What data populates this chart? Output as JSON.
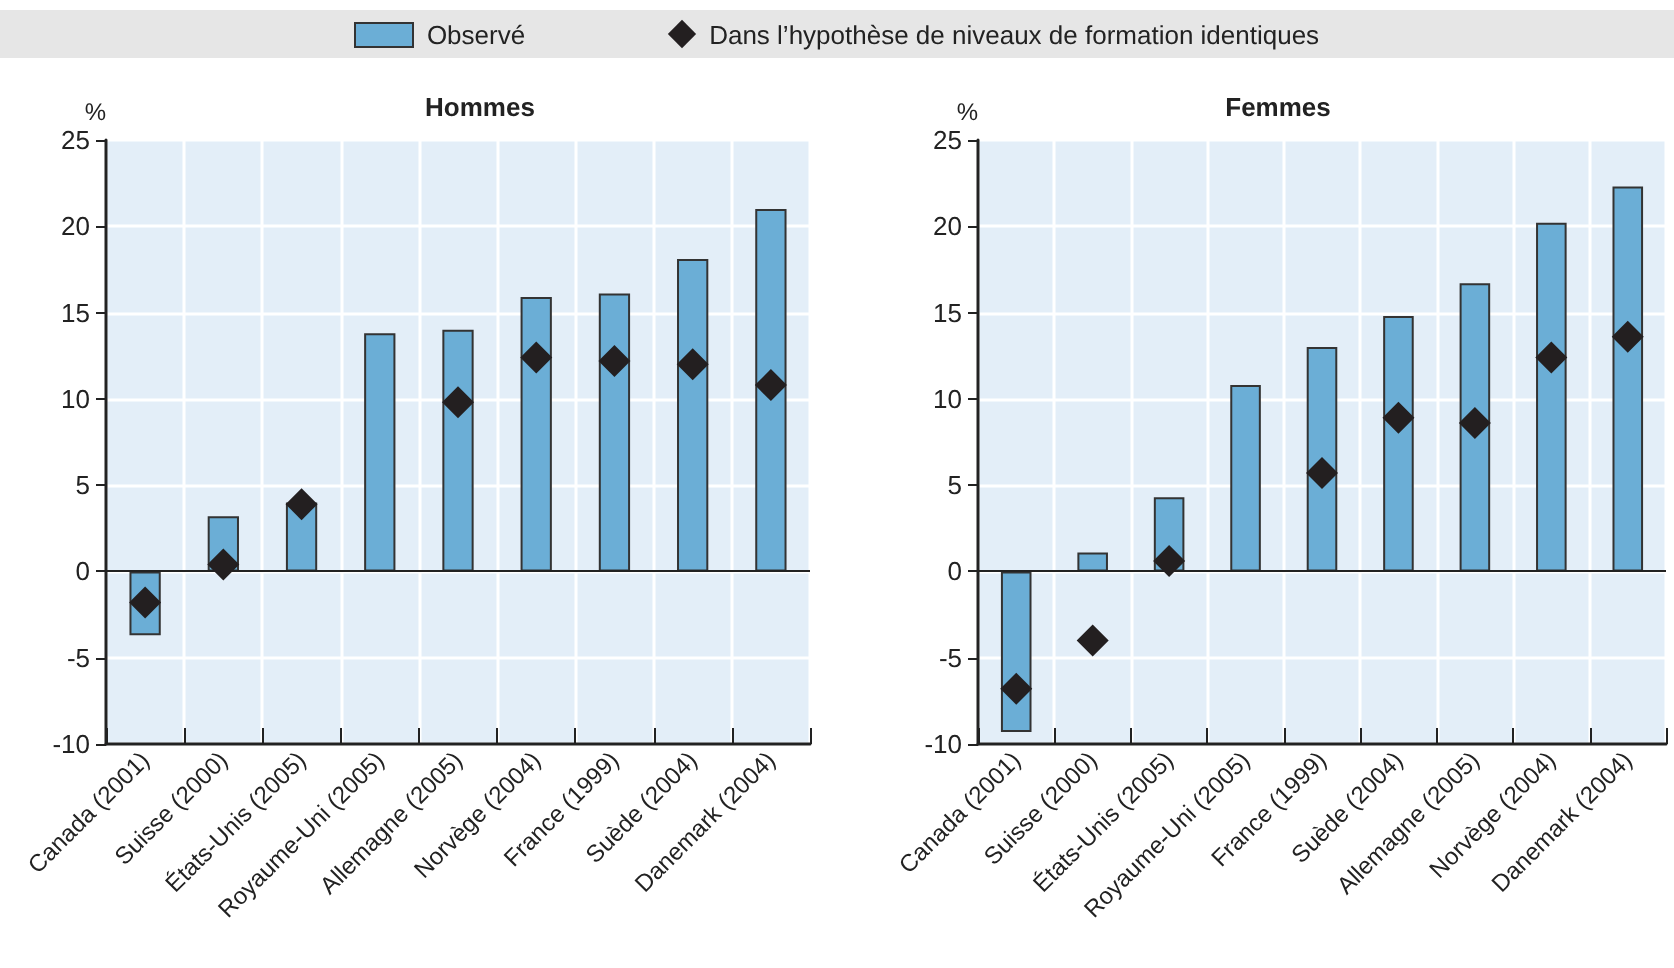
{
  "chart_data": [
    {
      "type": "bar",
      "title": "Hommes",
      "ylabel": "%",
      "categories": [
        "Canada (2001)",
        "Suisse (2000)",
        "États-Unis (2005)",
        "Royaume-Uni (2005)",
        "Allemagne (2005)",
        "Norvège (2004)",
        "France (1999)",
        "Suède (2004)",
        "Danemark (2004)"
      ],
      "series": [
        {
          "name": "Observé",
          "color": "#6baed6",
          "values": [
            -3.7,
            3.2,
            4.0,
            13.8,
            14.0,
            15.9,
            16.1,
            18.1,
            21.0
          ]
        },
        {
          "name": "Dans l’hypothèse de niveaux de formation identiques",
          "type": "scatter",
          "marker": "diamond",
          "color": "#231f20",
          "x": [
            "Canada (2001)",
            "Suisse (2000)",
            "États-Unis (2005)",
            "Royaume-Uni (2005)",
            "Allemagne (2005)",
            "Norvège (2004)",
            "France (1999)",
            "Suède (2004)",
            "Danemark (2004)"
          ],
          "values": [
            -1.8,
            0.4,
            3.9,
            null,
            9.8,
            12.4,
            12.2,
            12.0,
            10.8
          ]
        }
      ],
      "ylim": [
        -10,
        25
      ],
      "yticks": [
        -10,
        -5,
        0,
        5,
        10,
        15,
        20,
        25
      ],
      "grid": true,
      "legend": "top"
    },
    {
      "type": "bar",
      "title": "Femmes",
      "ylabel": "%",
      "categories": [
        "Canada (2001)",
        "Suisse (2000)",
        "États-Unis (2005)",
        "Royaume-Uni (2005)",
        "France (1999)",
        "Suède (2004)",
        "Allemagne (2005)",
        "Norvège (2004)",
        "Danemark (2004)"
      ],
      "series": [
        {
          "color": "#6baed6",
          "values": [
            -9.3,
            1.1,
            4.3,
            10.8,
            13.0,
            14.8,
            16.7,
            20.2,
            22.3
          ]
        },
        {
          "type": "scatter",
          "marker": "diamond",
          "color": "#231f20",
          "x": [
            "Canada (2001)",
            "Suisse (2000)",
            "États-Unis (2005)",
            "Royaume-Uni (2005)",
            "France (1999)",
            "Suède (2004)",
            "Allemagne (2005)",
            "Norvège (2004)",
            "Danemark (2004)"
          ],
          "values": [
            -6.8,
            -4.0,
            0.6,
            null,
            5.7,
            8.9,
            8.6,
            12.4,
            13.6
          ]
        }
      ],
      "ylim": [
        -10,
        25
      ],
      "yticks": [
        -10,
        -5,
        0,
        5,
        10,
        15,
        20,
        25
      ],
      "grid": true
    }
  ]
}
